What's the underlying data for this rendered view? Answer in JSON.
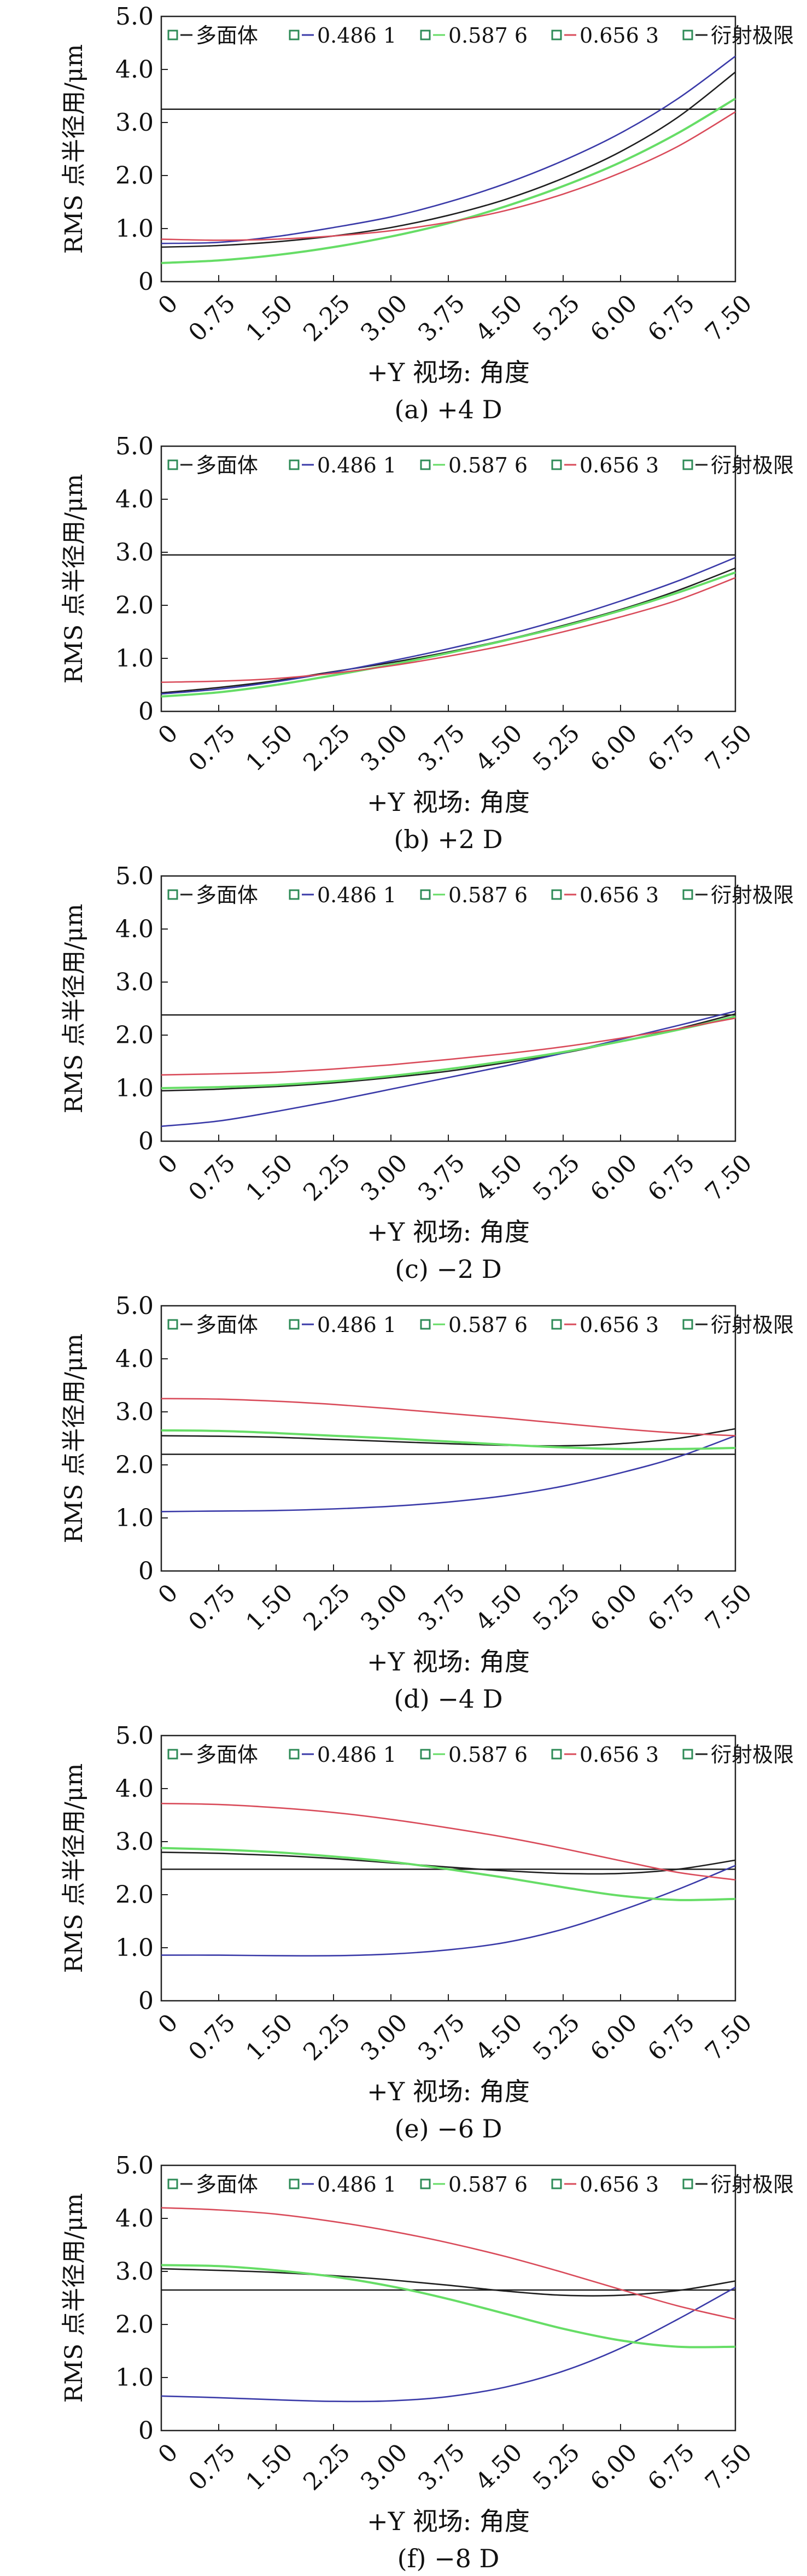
{
  "legend_labels": [
    "多面体",
    "0.486 1",
    "0.587 6",
    "0.656 3",
    "衍射极限"
  ],
  "colors": {
    "multi": "#1f1f1f",
    "w486": "#3a3aa8",
    "w587": "#66dd66",
    "w656": "#d94b5a",
    "limit": "#1f1f1f",
    "legend_marker": "#2e8b57"
  },
  "chart_data": [
    {
      "type": "line",
      "caption": "(a) +4 D",
      "xlabel": "+Y 视场: 角度",
      "ylabel": "RMS 点半径用/μm",
      "x_ticks": [
        "0",
        "0.75",
        "1.50",
        "2.25",
        "3.00",
        "3.75",
        "4.50",
        "5.25",
        "6.00",
        "6.75",
        "7.50"
      ],
      "y_ticks": [
        "0",
        "1.0",
        "2.0",
        "3.0",
        "4.0",
        "5.0"
      ],
      "xlim": [
        0,
        7.5
      ],
      "ylim": [
        0,
        5.0
      ],
      "x": [
        0,
        0.75,
        1.5,
        2.25,
        3.0,
        3.75,
        4.5,
        5.25,
        6.0,
        6.75,
        7.5
      ],
      "series": [
        {
          "name": "多面体",
          "key": "multi",
          "values": [
            0.65,
            0.68,
            0.75,
            0.86,
            1.02,
            1.25,
            1.55,
            1.95,
            2.45,
            3.1,
            3.95
          ]
        },
        {
          "name": "0.486 1",
          "key": "w486",
          "values": [
            0.72,
            0.74,
            0.85,
            1.02,
            1.22,
            1.5,
            1.85,
            2.28,
            2.8,
            3.45,
            4.25
          ]
        },
        {
          "name": "0.587 6",
          "key": "w587",
          "values": [
            0.35,
            0.4,
            0.5,
            0.65,
            0.85,
            1.1,
            1.42,
            1.8,
            2.25,
            2.8,
            3.45
          ]
        },
        {
          "name": "0.656 3",
          "key": "w656",
          "values": [
            0.8,
            0.78,
            0.8,
            0.86,
            0.96,
            1.12,
            1.34,
            1.65,
            2.05,
            2.55,
            3.2
          ]
        }
      ],
      "limit": 3.25
    },
    {
      "type": "line",
      "caption": "(b) +2 D",
      "xlabel": "+Y 视场: 角度",
      "ylabel": "RMS 点半径用/μm",
      "x_ticks": [
        "0",
        "0.75",
        "1.50",
        "2.25",
        "3.00",
        "3.75",
        "4.50",
        "5.25",
        "6.00",
        "6.75",
        "7.50"
      ],
      "y_ticks": [
        "0",
        "1.0",
        "2.0",
        "3.0",
        "4.0",
        "5.0"
      ],
      "xlim": [
        0,
        7.5
      ],
      "ylim": [
        0,
        5.0
      ],
      "x": [
        0,
        0.75,
        1.5,
        2.25,
        3.0,
        3.75,
        4.5,
        5.25,
        6.0,
        6.75,
        7.5
      ],
      "series": [
        {
          "name": "多面体",
          "key": "multi",
          "values": [
            0.35,
            0.45,
            0.58,
            0.75,
            0.92,
            1.12,
            1.35,
            1.62,
            1.92,
            2.28,
            2.7
          ]
        },
        {
          "name": "0.486 1",
          "key": "w486",
          "values": [
            0.33,
            0.42,
            0.56,
            0.74,
            0.95,
            1.18,
            1.44,
            1.74,
            2.08,
            2.46,
            2.9
          ]
        },
        {
          "name": "0.587 6",
          "key": "w587",
          "values": [
            0.28,
            0.36,
            0.5,
            0.68,
            0.88,
            1.1,
            1.34,
            1.6,
            1.9,
            2.24,
            2.62
          ]
        },
        {
          "name": "0.656 3",
          "key": "w656",
          "values": [
            0.55,
            0.57,
            0.62,
            0.72,
            0.86,
            1.04,
            1.25,
            1.5,
            1.78,
            2.1,
            2.52
          ]
        }
      ],
      "limit": 2.95
    },
    {
      "type": "line",
      "caption": "(c) −2 D",
      "xlabel": "+Y 视场: 角度",
      "ylabel": "RMS 点半径用/μm",
      "x_ticks": [
        "0",
        "0.75",
        "1.50",
        "2.25",
        "3.00",
        "3.75",
        "4.50",
        "5.25",
        "6.00",
        "6.75",
        "7.50"
      ],
      "y_ticks": [
        "0",
        "1.0",
        "2.0",
        "3.0",
        "4.0",
        "5.0"
      ],
      "xlim": [
        0,
        7.5
      ],
      "ylim": [
        0,
        5.0
      ],
      "x": [
        0,
        0.75,
        1.5,
        2.25,
        3.0,
        3.75,
        4.5,
        5.25,
        6.0,
        6.75,
        7.5
      ],
      "series": [
        {
          "name": "多面体",
          "key": "multi",
          "values": [
            0.95,
            0.98,
            1.03,
            1.1,
            1.2,
            1.32,
            1.48,
            1.66,
            1.88,
            2.12,
            2.4
          ]
        },
        {
          "name": "0.486 1",
          "key": "w486",
          "values": [
            0.28,
            0.38,
            0.56,
            0.76,
            0.98,
            1.2,
            1.42,
            1.66,
            1.92,
            2.18,
            2.45
          ]
        },
        {
          "name": "0.587 6",
          "key": "w587",
          "values": [
            1.0,
            1.02,
            1.06,
            1.13,
            1.23,
            1.36,
            1.51,
            1.68,
            1.88,
            2.1,
            2.35
          ]
        },
        {
          "name": "0.656 3",
          "key": "w656",
          "values": [
            1.25,
            1.27,
            1.3,
            1.36,
            1.44,
            1.54,
            1.65,
            1.78,
            1.94,
            2.12,
            2.32
          ]
        }
      ],
      "limit": 2.38
    },
    {
      "type": "line",
      "caption": "(d) −4 D",
      "xlabel": "+Y 视场: 角度",
      "ylabel": "RMS 点半径用/μm",
      "x_ticks": [
        "0",
        "0.75",
        "1.50",
        "2.25",
        "3.00",
        "3.75",
        "4.50",
        "5.25",
        "6.00",
        "6.75",
        "7.50"
      ],
      "y_ticks": [
        "0",
        "1.0",
        "2.0",
        "3.0",
        "4.0",
        "5.0"
      ],
      "xlim": [
        0,
        7.5
      ],
      "ylim": [
        0,
        5.0
      ],
      "x": [
        0,
        0.75,
        1.5,
        2.25,
        3.0,
        3.75,
        4.5,
        5.25,
        6.0,
        6.75,
        7.5
      ],
      "series": [
        {
          "name": "多面体",
          "key": "multi",
          "values": [
            2.55,
            2.54,
            2.52,
            2.48,
            2.44,
            2.4,
            2.37,
            2.36,
            2.4,
            2.5,
            2.68
          ]
        },
        {
          "name": "0.486 1",
          "key": "w486",
          "values": [
            1.12,
            1.13,
            1.14,
            1.17,
            1.22,
            1.3,
            1.42,
            1.6,
            1.85,
            2.15,
            2.55
          ]
        },
        {
          "name": "0.587 6",
          "key": "w587",
          "values": [
            2.65,
            2.64,
            2.6,
            2.55,
            2.5,
            2.44,
            2.38,
            2.33,
            2.3,
            2.3,
            2.32
          ]
        },
        {
          "name": "0.656 3",
          "key": "w656",
          "values": [
            3.25,
            3.24,
            3.2,
            3.14,
            3.06,
            2.97,
            2.88,
            2.78,
            2.68,
            2.6,
            2.55
          ]
        }
      ],
      "limit": 2.2
    },
    {
      "type": "line",
      "caption": "(e) −6 D",
      "xlabel": "+Y 视场: 角度",
      "ylabel": "RMS 点半径用/μm",
      "x_ticks": [
        "0",
        "0.75",
        "1.50",
        "2.25",
        "3.00",
        "3.75",
        "4.50",
        "5.25",
        "6.00",
        "6.75",
        "7.50"
      ],
      "y_ticks": [
        "0",
        "1.0",
        "2.0",
        "3.0",
        "4.0",
        "5.0"
      ],
      "xlim": [
        0,
        7.5
      ],
      "ylim": [
        0,
        5.0
      ],
      "x": [
        0,
        0.75,
        1.5,
        2.25,
        3.0,
        3.75,
        4.5,
        5.25,
        6.0,
        6.75,
        7.5
      ],
      "series": [
        {
          "name": "多面体",
          "key": "multi",
          "values": [
            2.8,
            2.78,
            2.74,
            2.68,
            2.6,
            2.52,
            2.45,
            2.4,
            2.4,
            2.48,
            2.65
          ]
        },
        {
          "name": "0.486 1",
          "key": "w486",
          "values": [
            0.86,
            0.86,
            0.85,
            0.85,
            0.88,
            0.96,
            1.1,
            1.35,
            1.7,
            2.1,
            2.55
          ]
        },
        {
          "name": "0.587 6",
          "key": "w587",
          "values": [
            2.88,
            2.85,
            2.8,
            2.72,
            2.62,
            2.48,
            2.32,
            2.14,
            1.98,
            1.9,
            1.92
          ]
        },
        {
          "name": "0.656 3",
          "key": "w656",
          "values": [
            3.72,
            3.7,
            3.64,
            3.55,
            3.42,
            3.26,
            3.08,
            2.87,
            2.64,
            2.42,
            2.28
          ]
        }
      ],
      "limit": 2.48
    },
    {
      "type": "line",
      "caption": "(f) −8 D",
      "xlabel": "+Y 视场: 角度",
      "ylabel": "RMS 点半径用/μm",
      "x_ticks": [
        "0",
        "0.75",
        "1.50",
        "2.25",
        "3.00",
        "3.75",
        "4.50",
        "5.25",
        "6.00",
        "6.75",
        "7.50"
      ],
      "y_ticks": [
        "0",
        "1.0",
        "2.0",
        "3.0",
        "4.0",
        "5.0"
      ],
      "xlim": [
        0,
        7.5
      ],
      "ylim": [
        0,
        5.0
      ],
      "x": [
        0,
        0.75,
        1.5,
        2.25,
        3.0,
        3.75,
        4.5,
        5.25,
        6.0,
        6.75,
        7.5
      ],
      "series": [
        {
          "name": "多面体",
          "key": "multi",
          "values": [
            3.05,
            3.02,
            2.98,
            2.92,
            2.84,
            2.74,
            2.63,
            2.55,
            2.55,
            2.64,
            2.82
          ]
        },
        {
          "name": "0.486 1",
          "key": "w486",
          "values": [
            0.65,
            0.62,
            0.58,
            0.55,
            0.56,
            0.64,
            0.82,
            1.12,
            1.55,
            2.1,
            2.7
          ]
        },
        {
          "name": "0.587 6",
          "key": "w587",
          "values": [
            3.12,
            3.1,
            3.02,
            2.9,
            2.72,
            2.48,
            2.2,
            1.92,
            1.7,
            1.58,
            1.58
          ]
        },
        {
          "name": "0.656 3",
          "key": "w656",
          "values": [
            4.2,
            4.16,
            4.08,
            3.94,
            3.76,
            3.54,
            3.28,
            2.98,
            2.66,
            2.35,
            2.1
          ]
        }
      ],
      "limit": 2.65
    }
  ]
}
